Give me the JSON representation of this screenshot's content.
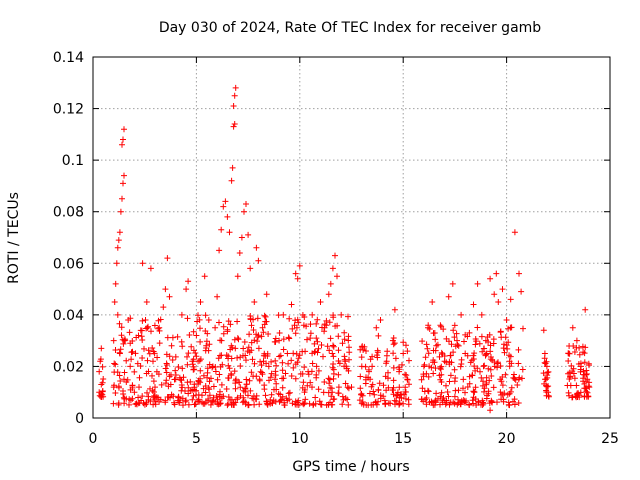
{
  "chart_data": {
    "type": "scatter",
    "title": "Day 030 of 2024, Rate Of TEC Index for receiver gamb",
    "xlabel": "GPS time / hours",
    "ylabel": "ROTI / TECUs",
    "xlim": [
      0,
      25
    ],
    "ylim": [
      0,
      0.14
    ],
    "xticks": [
      0,
      5,
      10,
      15,
      20,
      25
    ],
    "xtick_labels": [
      "0",
      "5",
      "10",
      "15",
      "20",
      "25"
    ],
    "yticks": [
      0,
      0.02,
      0.04,
      0.06,
      0.08,
      0.1,
      0.12,
      0.14
    ],
    "ytick_labels": [
      "0",
      "0.02",
      "0.04",
      "0.06",
      "0.08",
      "0.1",
      "0.12",
      "0.14"
    ],
    "grid": true,
    "marker": "+",
    "series_color": "#ff0000",
    "series": [
      {
        "name": "ROTI",
        "points": [
          [
            0.3,
            0.01
          ],
          [
            0.3,
            0.018
          ],
          [
            0.35,
            0.022
          ],
          [
            0.4,
            0.027
          ],
          [
            0.4,
            0.013
          ],
          [
            0.45,
            0.009
          ],
          [
            1.0,
            0.012
          ],
          [
            1.0,
            0.03
          ],
          [
            1.05,
            0.045
          ],
          [
            1.1,
            0.052
          ],
          [
            1.15,
            0.06
          ],
          [
            1.2,
            0.066
          ],
          [
            1.25,
            0.069
          ],
          [
            1.3,
            0.072
          ],
          [
            1.35,
            0.08
          ],
          [
            1.4,
            0.085
          ],
          [
            1.45,
            0.091
          ],
          [
            1.5,
            0.094
          ],
          [
            1.4,
            0.106
          ],
          [
            1.45,
            0.108
          ],
          [
            1.5,
            0.112
          ],
          [
            1.2,
            0.04
          ],
          [
            1.3,
            0.025
          ],
          [
            1.5,
            0.015
          ],
          [
            1.7,
            0.038
          ],
          [
            1.8,
            0.02
          ],
          [
            2.0,
            0.01
          ],
          [
            2.2,
            0.032
          ],
          [
            2.4,
            0.06
          ],
          [
            2.6,
            0.045
          ],
          [
            2.8,
            0.058
          ],
          [
            2.9,
            0.022
          ],
          [
            3.0,
            0.012
          ],
          [
            3.2,
            0.035
          ],
          [
            3.4,
            0.043
          ],
          [
            3.5,
            0.05
          ],
          [
            3.6,
            0.062
          ],
          [
            3.7,
            0.047
          ],
          [
            3.8,
            0.028
          ],
          [
            4.0,
            0.015
          ],
          [
            4.3,
            0.04
          ],
          [
            4.5,
            0.05
          ],
          [
            4.6,
            0.053
          ],
          [
            4.8,
            0.022
          ],
          [
            5.0,
            0.032
          ],
          [
            5.2,
            0.045
          ],
          [
            5.4,
            0.055
          ],
          [
            5.6,
            0.038
          ],
          [
            5.8,
            0.02
          ],
          [
            6.0,
            0.047
          ],
          [
            6.1,
            0.065
          ],
          [
            6.2,
            0.073
          ],
          [
            6.3,
            0.082
          ],
          [
            6.4,
            0.084
          ],
          [
            6.5,
            0.078
          ],
          [
            6.6,
            0.072
          ],
          [
            6.7,
            0.092
          ],
          [
            6.75,
            0.097
          ],
          [
            6.8,
            0.113
          ],
          [
            6.85,
            0.114
          ],
          [
            6.8,
            0.121
          ],
          [
            6.85,
            0.125
          ],
          [
            6.9,
            0.128
          ],
          [
            7.0,
            0.055
          ],
          [
            7.1,
            0.064
          ],
          [
            7.2,
            0.07
          ],
          [
            7.3,
            0.08
          ],
          [
            7.4,
            0.083
          ],
          [
            7.5,
            0.071
          ],
          [
            7.6,
            0.058
          ],
          [
            7.8,
            0.045
          ],
          [
            7.9,
            0.066
          ],
          [
            8.0,
            0.061
          ],
          [
            8.2,
            0.035
          ],
          [
            8.4,
            0.048
          ],
          [
            8.5,
            0.02
          ],
          [
            8.8,
            0.015
          ],
          [
            9.0,
            0.03
          ],
          [
            9.2,
            0.04
          ],
          [
            9.4,
            0.025
          ],
          [
            9.6,
            0.044
          ],
          [
            9.8,
            0.056
          ],
          [
            9.9,
            0.054
          ],
          [
            10.0,
            0.059
          ],
          [
            10.2,
            0.036
          ],
          [
            10.4,
            0.018
          ],
          [
            10.6,
            0.04
          ],
          [
            10.8,
            0.031
          ],
          [
            11.0,
            0.045
          ],
          [
            11.2,
            0.035
          ],
          [
            11.4,
            0.048
          ],
          [
            11.5,
            0.052
          ],
          [
            11.6,
            0.058
          ],
          [
            11.7,
            0.063
          ],
          [
            11.8,
            0.055
          ],
          [
            12.0,
            0.04
          ],
          [
            12.2,
            0.022
          ],
          [
            12.5,
            0.012
          ],
          [
            13.0,
            0.02
          ],
          [
            13.2,
            0.026
          ],
          [
            13.4,
            0.015
          ],
          [
            13.7,
            0.035
          ],
          [
            13.9,
            0.038
          ],
          [
            14.2,
            0.022
          ],
          [
            14.5,
            0.03
          ],
          [
            14.6,
            0.042
          ],
          [
            14.8,
            0.018
          ],
          [
            15.0,
            0.025
          ],
          [
            15.2,
            0.015
          ],
          [
            16.0,
            0.02
          ],
          [
            16.2,
            0.035
          ],
          [
            16.4,
            0.045
          ],
          [
            16.6,
            0.028
          ],
          [
            16.8,
            0.036
          ],
          [
            17.0,
            0.022
          ],
          [
            17.2,
            0.047
          ],
          [
            17.4,
            0.052
          ],
          [
            17.6,
            0.03
          ],
          [
            17.8,
            0.04
          ],
          [
            18.0,
            0.025
          ],
          [
            18.2,
            0.033
          ],
          [
            18.4,
            0.044
          ],
          [
            18.6,
            0.052
          ],
          [
            18.8,
            0.04
          ],
          [
            19.0,
            0.03
          ],
          [
            19.2,
            0.054
          ],
          [
            19.4,
            0.048
          ],
          [
            19.5,
            0.056
          ],
          [
            19.6,
            0.045
          ],
          [
            19.8,
            0.05
          ],
          [
            20.0,
            0.038
          ],
          [
            20.2,
            0.046
          ],
          [
            20.4,
            0.072
          ],
          [
            20.6,
            0.056
          ],
          [
            20.7,
            0.049
          ],
          [
            19.2,
            0.003
          ],
          [
            19.3,
            0.006
          ],
          [
            21.8,
            0.034
          ],
          [
            21.85,
            0.025
          ],
          [
            21.9,
            0.015
          ],
          [
            22.0,
            0.01
          ],
          [
            21.95,
            0.02
          ],
          [
            23.0,
            0.025
          ],
          [
            23.2,
            0.035
          ],
          [
            23.4,
            0.03
          ],
          [
            23.6,
            0.02
          ],
          [
            23.8,
            0.042
          ],
          [
            23.9,
            0.015
          ],
          [
            24.0,
            0.012
          ]
        ],
        "segments": [
          {
            "x0": 0.3,
            "x1": 0.5,
            "ymin": 0.008,
            "ymax": 0.024,
            "density": 3
          },
          {
            "x0": 0.95,
            "x1": 12.4,
            "ymin": 0.005,
            "ymax": 0.04,
            "density": 2.6
          },
          {
            "x0": 12.9,
            "x1": 15.3,
            "ymin": 0.005,
            "ymax": 0.032,
            "density": 2.2
          },
          {
            "x0": 15.8,
            "x1": 20.8,
            "ymin": 0.005,
            "ymax": 0.036,
            "density": 2.5
          },
          {
            "x0": 21.75,
            "x1": 22.05,
            "ymin": 0.008,
            "ymax": 0.026,
            "density": 3
          },
          {
            "x0": 22.9,
            "x1": 24.0,
            "ymin": 0.008,
            "ymax": 0.028,
            "density": 3
          }
        ]
      }
    ]
  }
}
